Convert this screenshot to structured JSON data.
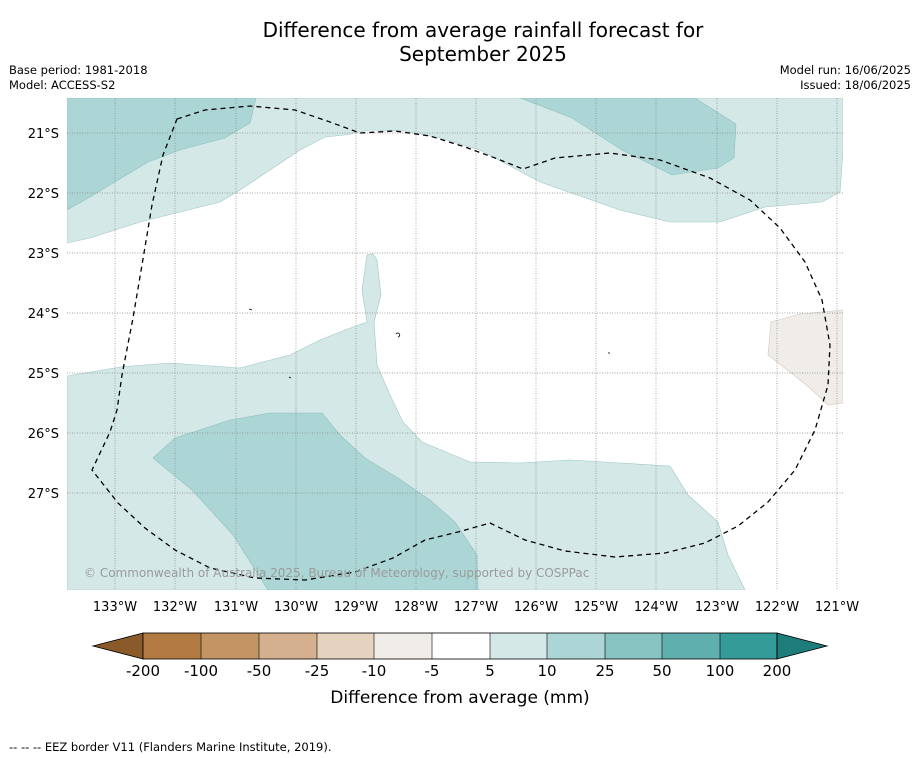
{
  "title_line1": "Difference from average rainfall forecast for",
  "title_line2": "September 2025",
  "meta_left": {
    "base_period": "Base period: 1981-2018",
    "model": "Model: ACCESS-S2"
  },
  "meta_right": {
    "model_run": "Model run: 16/06/2025",
    "issued": "Issued: 18/06/2025"
  },
  "map": {
    "lat_labels": [
      "21°S",
      "22°S",
      "23°S",
      "24°S",
      "25°S",
      "26°S",
      "27°S"
    ],
    "lon_labels": [
      "133°W",
      "132°W",
      "131°W",
      "130°W",
      "129°W",
      "128°W",
      "127°W",
      "126°W",
      "125°W",
      "124°W",
      "123°W",
      "122°W",
      "121°W"
    ],
    "copyright": "© Commonwealth of Australia 2025, Bureau of Meteorology, supported by COSPPac",
    "fill_colors": {
      "band_5_10": "#d4e9e7",
      "band_10_25": "#acd6d5",
      "band_neg10_neg5": "#f0ede9",
      "boundary": "#000000"
    }
  },
  "colorbar": {
    "ticks": [
      "-200",
      "-100",
      "-50",
      "-25",
      "-10",
      "-5",
      "5",
      "10",
      "25",
      "50",
      "100",
      "200"
    ],
    "title": "Difference from average (mm)",
    "colors": [
      "#8b5a2b",
      "#b07a40",
      "#c39565",
      "#d4b08e",
      "#e5d3c0",
      "#f0ede9",
      "#ffffff",
      "#d4e9e7",
      "#acd6d5",
      "#87c3c1",
      "#5fafae",
      "#359b98",
      "#1c7d7a"
    ]
  },
  "footer": "--  --  -- EEZ border V11 (Flanders Marine Institute, 2019)."
}
